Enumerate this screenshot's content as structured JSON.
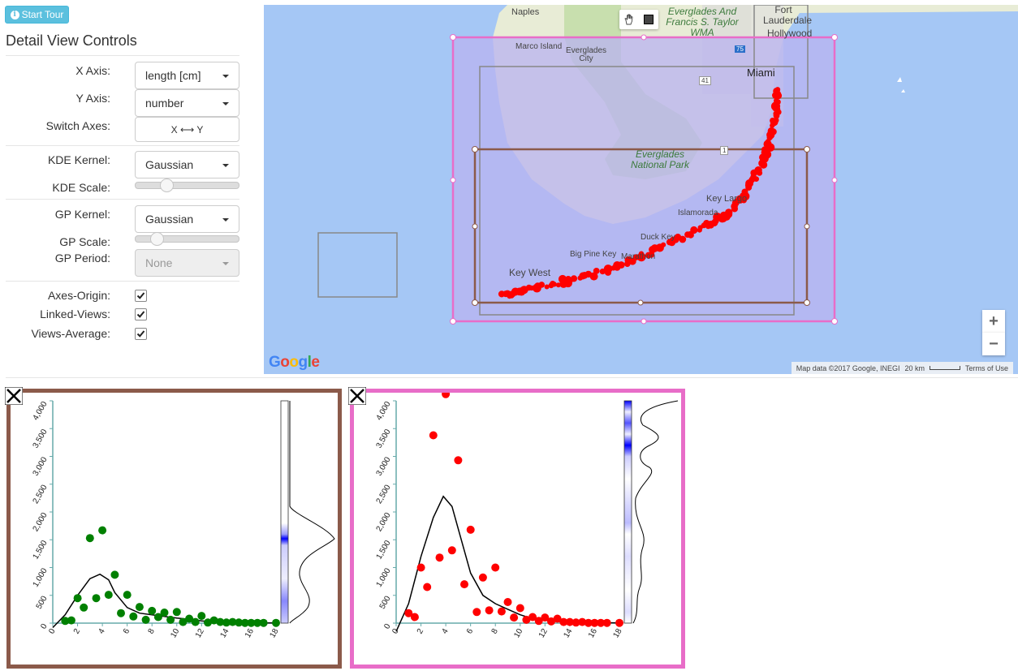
{
  "tour": {
    "label": "Start Tour"
  },
  "controls": {
    "title": "Detail View Controls",
    "x_axis": {
      "label": "X Axis:",
      "value": "length [cm]"
    },
    "y_axis": {
      "label": "Y Axis:",
      "value": "number"
    },
    "switch_axes": {
      "label": "Switch Axes:",
      "button": "X ⟷ Y"
    },
    "kde_kernel": {
      "label": "KDE Kernel:",
      "value": "Gaussian"
    },
    "kde_scale": {
      "label": "KDE Scale:",
      "level": 0.27
    },
    "gp_kernel": {
      "label": "GP Kernel:",
      "value": "Gaussian"
    },
    "gp_scale": {
      "label": "GP Scale:",
      "level": 0.16
    },
    "gp_period": {
      "label": "GP Period:",
      "value": "None"
    },
    "axes_origin": {
      "label": "Axes-Origin:",
      "checked": true
    },
    "linked_views": {
      "label": "Linked-Views:",
      "checked": true
    },
    "views_average": {
      "label": "Views-Average:",
      "checked": true
    }
  },
  "map": {
    "labels": {
      "naples": "Naples",
      "marco": "Marco Island",
      "everglades_city": "Everglades City",
      "everglades_wma": "Everglades And Francis S. Taylor WMA",
      "fort_lauderdale": "Fort Lauderdale",
      "hollywood": "Hollywood",
      "miami": "Miami",
      "everglades_np": "Everglades National Park",
      "key_largo": "Key Largo",
      "islamorada": "Islamorada",
      "duck_key": "Duck Key",
      "big_pine_key": "Big Pine Key",
      "marathon": "Marathon",
      "key_west": "Key West",
      "route_41": "41",
      "route_75": "75",
      "route_1": "1"
    },
    "google": "Google",
    "attribution": "Map data ©2017 Google, INEGI",
    "scale": "20 km",
    "terms": "Terms of Use",
    "zoom_in": "+",
    "zoom_out": "−",
    "colors": {
      "water": "#a5c7f5",
      "land": "#e8ecd6",
      "park": "#c8dfae",
      "points": "#ff0000",
      "brown_rect": "#8b5a4a",
      "pink_rect": "#e86dc8"
    }
  },
  "chart_data": [
    {
      "type": "scatter",
      "border_color": "#8b5a4a",
      "point_color": "#008000",
      "xlim": [
        0,
        18
      ],
      "ylim": [
        0,
        4000
      ],
      "x_ticks": [
        "0",
        "2",
        "4",
        "6",
        "8",
        "10",
        "12",
        "14",
        "16",
        "18"
      ],
      "y_ticks": [
        "0",
        "500",
        "1,000",
        "1,500",
        "2,000",
        "2,500",
        "3,000",
        "3,500",
        "4,000"
      ],
      "points": [
        [
          1,
          40
        ],
        [
          1.5,
          50
        ],
        [
          2,
          450
        ],
        [
          2.5,
          280
        ],
        [
          3,
          1530
        ],
        [
          3.5,
          450
        ],
        [
          4,
          1670
        ],
        [
          4.5,
          510
        ],
        [
          5,
          870
        ],
        [
          5.5,
          180
        ],
        [
          6,
          510
        ],
        [
          6.5,
          120
        ],
        [
          7,
          290
        ],
        [
          7.5,
          60
        ],
        [
          8,
          220
        ],
        [
          8.5,
          110
        ],
        [
          9,
          190
        ],
        [
          9.5,
          60
        ],
        [
          10,
          200
        ],
        [
          10.5,
          20
        ],
        [
          11,
          80
        ],
        [
          11.5,
          20
        ],
        [
          12,
          130
        ],
        [
          12.5,
          10
        ],
        [
          13,
          50
        ],
        [
          13.5,
          20
        ],
        [
          14,
          10
        ],
        [
          14.5,
          20
        ],
        [
          15,
          10
        ],
        [
          15.5,
          5
        ],
        [
          16,
          5
        ],
        [
          16.5,
          5
        ],
        [
          17,
          5
        ],
        [
          18,
          5
        ]
      ],
      "kde_curve": [
        [
          0,
          -80
        ],
        [
          1,
          150
        ],
        [
          2,
          500
        ],
        [
          3,
          800
        ],
        [
          3.8,
          880
        ],
        [
          4.5,
          780
        ],
        [
          5,
          550
        ],
        [
          6,
          280
        ],
        [
          7,
          180
        ],
        [
          8,
          150
        ],
        [
          9,
          120
        ],
        [
          10,
          90
        ],
        [
          11,
          70
        ],
        [
          12,
          40
        ],
        [
          13,
          20
        ],
        [
          14,
          10
        ],
        [
          16,
          5
        ],
        [
          18,
          5
        ]
      ],
      "density_peak": 0.58
    },
    {
      "type": "scatter",
      "border_color": "#e86dc8",
      "point_color": "#ff0000",
      "xlim": [
        0,
        18
      ],
      "ylim": [
        0,
        4000
      ],
      "x_ticks": [
        "0",
        "2",
        "4",
        "6",
        "8",
        "10",
        "12",
        "14",
        "16",
        "18"
      ],
      "y_ticks": [
        "0",
        "500",
        "1,000",
        "1,500",
        "2,000",
        "2,500",
        "3,000",
        "3,500",
        "4,000"
      ],
      "points": [
        [
          1,
          180
        ],
        [
          1.5,
          110
        ],
        [
          2,
          1000
        ],
        [
          2.5,
          650
        ],
        [
          3,
          3380
        ],
        [
          3.5,
          1180
        ],
        [
          4,
          4120
        ],
        [
          4.5,
          1310
        ],
        [
          5,
          2930
        ],
        [
          5.5,
          700
        ],
        [
          6,
          1680
        ],
        [
          6.5,
          200
        ],
        [
          7,
          820
        ],
        [
          7.5,
          230
        ],
        [
          8,
          1000
        ],
        [
          8.5,
          210
        ],
        [
          9,
          380
        ],
        [
          9.5,
          100
        ],
        [
          10,
          270
        ],
        [
          10.5,
          60
        ],
        [
          11,
          110
        ],
        [
          11.5,
          40
        ],
        [
          12,
          100
        ],
        [
          12.5,
          30
        ],
        [
          13,
          80
        ],
        [
          13.5,
          20
        ],
        [
          14,
          20
        ],
        [
          14.5,
          10
        ],
        [
          15,
          20
        ],
        [
          15.5,
          5
        ],
        [
          16,
          5
        ],
        [
          16.5,
          5
        ],
        [
          17,
          5
        ],
        [
          18,
          5
        ]
      ],
      "kde_curve": [
        [
          0,
          -150
        ],
        [
          1,
          350
        ],
        [
          2,
          1200
        ],
        [
          3,
          1900
        ],
        [
          3.8,
          2280
        ],
        [
          4.5,
          2100
        ],
        [
          5,
          1700
        ],
        [
          6,
          900
        ],
        [
          7,
          500
        ],
        [
          8,
          350
        ],
        [
          9,
          250
        ],
        [
          10,
          150
        ],
        [
          11,
          80
        ],
        [
          12,
          50
        ],
        [
          13,
          30
        ],
        [
          14,
          20
        ],
        [
          16,
          10
        ],
        [
          18,
          5
        ]
      ]
    }
  ]
}
